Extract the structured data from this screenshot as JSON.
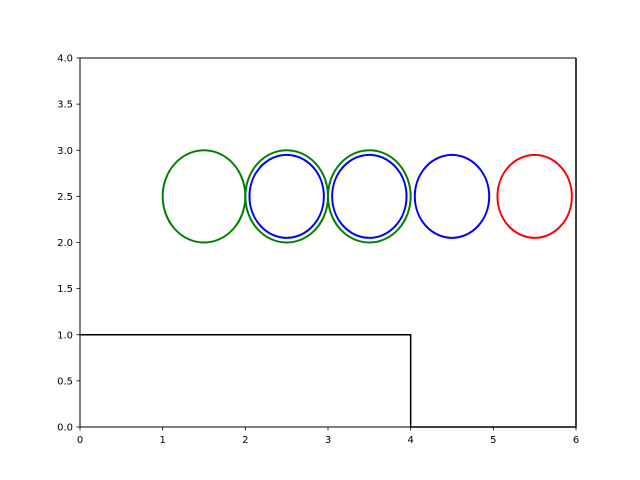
{
  "chart_data": {
    "type": "line",
    "title": "",
    "xlabel": "",
    "ylabel": "",
    "xlim": [
      0,
      6
    ],
    "ylim": [
      0,
      4
    ],
    "x_ticks": [
      0,
      1,
      2,
      3,
      4,
      5,
      6
    ],
    "x_tick_labels": [
      "0",
      "1",
      "2",
      "3",
      "4",
      "5",
      "6"
    ],
    "y_ticks": [
      0.0,
      0.5,
      1.0,
      1.5,
      2.0,
      2.5,
      3.0,
      3.5,
      4.0
    ],
    "y_tick_labels": [
      "0.0",
      "0.5",
      "1.0",
      "1.5",
      "2.0",
      "2.5",
      "3.0",
      "3.5",
      "4.0"
    ],
    "grid": false,
    "legend": "none",
    "series": [
      {
        "x": [
          0,
          4,
          4,
          6,
          6
        ],
        "y": [
          1,
          1,
          0,
          0,
          4
        ],
        "color": "#000000"
      }
    ],
    "circles": [
      {
        "cx": 1.5,
        "cy": 2.5,
        "r": 0.5,
        "color": "#008000"
      },
      {
        "cx": 2.5,
        "cy": 2.5,
        "r": 0.5,
        "color": "#008000"
      },
      {
        "cx": 3.5,
        "cy": 2.5,
        "r": 0.5,
        "color": "#008000"
      },
      {
        "cx": 2.5,
        "cy": 2.5,
        "r": 0.45,
        "color": "#0000ff"
      },
      {
        "cx": 3.5,
        "cy": 2.5,
        "r": 0.45,
        "color": "#0000ff"
      },
      {
        "cx": 4.5,
        "cy": 2.5,
        "r": 0.45,
        "color": "#0000ff"
      },
      {
        "cx": 5.5,
        "cy": 2.5,
        "r": 0.45,
        "color": "#ff0000"
      }
    ]
  }
}
